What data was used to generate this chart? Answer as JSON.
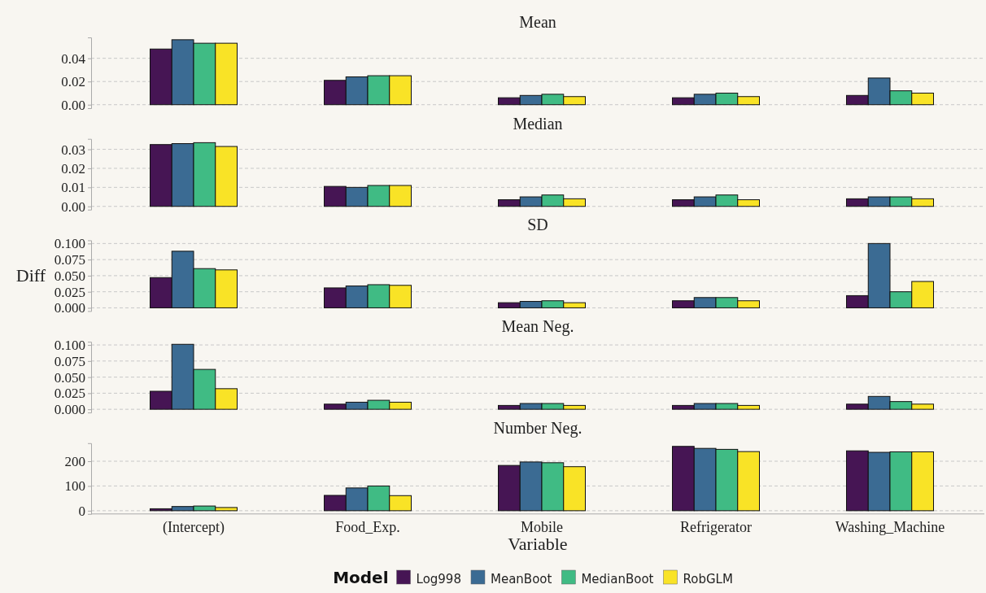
{
  "chart_data": [
    {
      "type": "bar",
      "title": "Mean",
      "categories": [
        null,
        null,
        null,
        null,
        null
      ],
      "series": [
        {
          "color": "#461554",
          "values": [
            0.048,
            0.021,
            0.006,
            0.006,
            0.008
          ]
        },
        {
          "color": "#3b6b93",
          "values": [
            0.056,
            0.024,
            0.008,
            0.009,
            0.023
          ]
        },
        {
          "color": "#40bb84",
          "values": [
            0.053,
            0.025,
            0.009,
            0.01,
            0.012
          ]
        },
        {
          "color": "#f9e326",
          "values": [
            0.053,
            0.025,
            0.007,
            0.007,
            0.01
          ]
        }
      ],
      "ylim": [
        -0.003,
        0.058
      ],
      "yticks": [
        {
          "value": 0,
          "label": "0.00"
        },
        0.02,
        0.04
      ],
      "grid": "y",
      "tick_labels": "y"
    },
    {
      "type": "bar",
      "title": "Median",
      "categories": [
        null,
        null,
        null,
        null,
        null
      ],
      "series": [
        {
          "color": "#461554",
          "values": [
            0.0325,
            0.0105,
            0.0035,
            0.0035,
            0.004
          ]
        },
        {
          "color": "#3b6b93",
          "values": [
            0.033,
            0.01,
            0.005,
            0.005,
            0.005
          ]
        },
        {
          "color": "#40bb84",
          "values": [
            0.0335,
            0.011,
            0.006,
            0.006,
            0.005
          ]
        },
        {
          "color": "#f9e326",
          "values": [
            0.0315,
            0.011,
            0.004,
            0.0035,
            0.004
          ]
        }
      ],
      "ylim": [
        -0.0017,
        0.0355
      ],
      "yticks": [
        {
          "value": 0,
          "label": "0.00"
        },
        0.01,
        0.02,
        0.03
      ],
      "grid": "y",
      "tick_labels": "y"
    },
    {
      "type": "bar",
      "title": "SD",
      "ylabel": "Diff",
      "categories": [
        null,
        null,
        null,
        null,
        null
      ],
      "series": [
        {
          "color": "#461554",
          "values": [
            0.047,
            0.031,
            0.008,
            0.011,
            0.019
          ]
        },
        {
          "color": "#3b6b93",
          "values": [
            0.088,
            0.034,
            0.01,
            0.016,
            0.1
          ]
        },
        {
          "color": "#40bb84",
          "values": [
            0.061,
            0.036,
            0.011,
            0.016,
            0.025
          ]
        },
        {
          "color": "#f9e326",
          "values": [
            0.059,
            0.035,
            0.008,
            0.011,
            0.041
          ]
        }
      ],
      "ylim": [
        -0.005,
        0.105
      ],
      "yticks": [
        {
          "value": 0,
          "label": "0.000"
        },
        0.025,
        {
          "value": 0.05,
          "label": "0.050"
        },
        0.075,
        {
          "value": 0.1,
          "label": "0.100"
        }
      ],
      "grid": "y",
      "tick_labels": "y"
    },
    {
      "type": "bar",
      "title": "Mean Neg.",
      "categories": [
        null,
        null,
        null,
        null,
        null
      ],
      "series": [
        {
          "color": "#461554",
          "values": [
            0.028,
            0.008,
            0.006,
            0.006,
            0.008
          ]
        },
        {
          "color": "#3b6b93",
          "values": [
            0.101,
            0.011,
            0.009,
            0.009,
            0.02
          ]
        },
        {
          "color": "#40bb84",
          "values": [
            0.062,
            0.014,
            0.009,
            0.009,
            0.012
          ]
        },
        {
          "color": "#f9e326",
          "values": [
            0.032,
            0.011,
            0.006,
            0.006,
            0.008
          ]
        }
      ],
      "ylim": [
        -0.005,
        0.105
      ],
      "yticks": [
        {
          "value": 0,
          "label": "0.000"
        },
        0.025,
        {
          "value": 0.05,
          "label": "0.050"
        },
        0.075,
        {
          "value": 0.1,
          "label": "0.100"
        }
      ],
      "grid": "y",
      "tick_labels": "y"
    },
    {
      "type": "bar",
      "title": "Number Neg.",
      "xlabel": "Variable",
      "legend_title": "Model",
      "legend": "bottom",
      "categories": [
        "(Intercept)",
        "Food_Exp.",
        "Mobile",
        "Refrigerator",
        "Washing_Machine"
      ],
      "series": [
        {
          "name": "Log998",
          "color": "#461554",
          "values": [
            8,
            62,
            183,
            260,
            242
          ]
        },
        {
          "name": "MeanBoot",
          "color": "#3b6b93",
          "values": [
            17,
            92,
            197,
            252,
            236
          ]
        },
        {
          "name": "MedianBoot",
          "color": "#40bb84",
          "values": [
            19,
            100,
            194,
            248,
            238
          ]
        },
        {
          "name": "RobGLM",
          "color": "#f9e326",
          "values": [
            13,
            61,
            178,
            239,
            238
          ]
        }
      ],
      "ylim": [
        -13,
        273
      ],
      "yticks": [
        0,
        100,
        200
      ],
      "grid": "y"
    }
  ]
}
